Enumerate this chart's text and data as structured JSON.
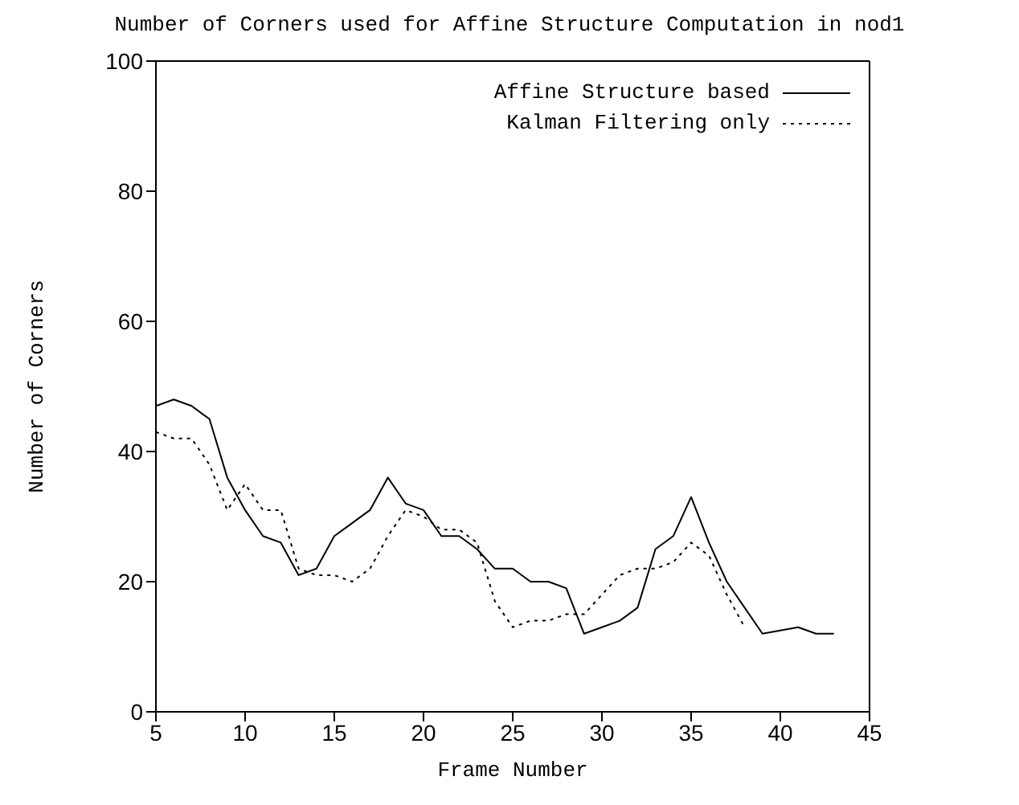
{
  "chart_data": {
    "type": "line",
    "title": "Number of Corners used for Affine Structure Computation in nod1",
    "xlabel": "Frame Number",
    "ylabel": "Number of Corners",
    "x": [
      5,
      6,
      7,
      8,
      9,
      10,
      11,
      12,
      13,
      14,
      15,
      16,
      17,
      18,
      19,
      20,
      21,
      22,
      23,
      24,
      25,
      26,
      27,
      28,
      29,
      30,
      31,
      32,
      33,
      34,
      35,
      36,
      37,
      38,
      39,
      40,
      41,
      42,
      43
    ],
    "series": [
      {
        "name": "Affine Structure based",
        "color": "#000000",
        "line_style": "solid",
        "values": [
          47,
          48,
          47,
          45,
          36,
          31,
          27,
          26,
          21,
          22,
          27,
          29,
          31,
          36,
          32,
          31,
          27,
          27,
          25,
          22,
          22,
          20,
          20,
          19,
          12,
          13,
          14,
          16,
          25,
          27,
          33,
          26,
          20,
          16,
          12,
          12.5,
          13,
          12,
          12
        ]
      },
      {
        "name": "Kalman Filtering only",
        "color": "#000000",
        "line_style": "dotted",
        "values": [
          43,
          42,
          42,
          38,
          31,
          35,
          31,
          31,
          22,
          21,
          21,
          20,
          22,
          27,
          31,
          30,
          28,
          28,
          26,
          17,
          13,
          14,
          14,
          15,
          15,
          18,
          21,
          22,
          22,
          23,
          26,
          24,
          18,
          13,
          null,
          null,
          null,
          null,
          null
        ]
      }
    ],
    "xlim": [
      5,
      45
    ],
    "xticks": [
      5,
      10,
      15,
      20,
      25,
      30,
      35,
      40,
      45
    ],
    "ylim": [
      0,
      100
    ],
    "yticks": [
      0,
      20,
      40,
      60,
      80,
      100
    ],
    "grid": false,
    "legend": "top right",
    "marker": "none"
  }
}
